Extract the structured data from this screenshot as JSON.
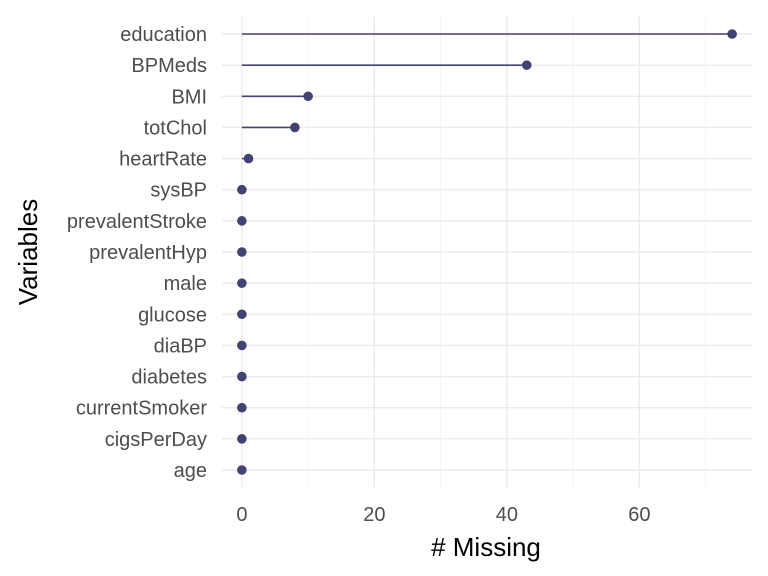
{
  "chart_data": {
    "type": "lollipop",
    "xlabel": "# Missing",
    "ylabel": "Variables",
    "xlim": [
      -3,
      77
    ],
    "x_ticks": [
      0,
      20,
      40,
      60
    ],
    "x_minor_ticks": [
      10,
      30,
      50,
      70
    ],
    "grid": true,
    "colors": {
      "mark": "#414373"
    },
    "categories": [
      "education",
      "BPMeds",
      "BMI",
      "totChol",
      "heartRate",
      "sysBP",
      "prevalentStroke",
      "prevalentHyp",
      "male",
      "glucose",
      "diaBP",
      "diabetes",
      "currentSmoker",
      "cigsPerDay",
      "age"
    ],
    "values": [
      74,
      43,
      10,
      8,
      1,
      0,
      0,
      0,
      0,
      0,
      0,
      0,
      0,
      0,
      0
    ]
  }
}
